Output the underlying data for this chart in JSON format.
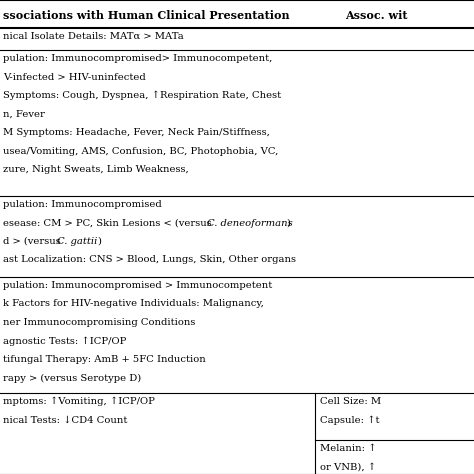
{
  "background_color": "#ffffff",
  "text_color": "#000000",
  "font_size": 7.2,
  "header_font_size": 8.0,
  "title_left": "ssociations with Human Clinical Presentation",
  "title_right": "Assoc. wit",
  "row1_text": "nical Isolate Details: MATα > MATa",
  "row2_lines": [
    "pulation: Immunocompromised> Immunocompetent,",
    "V-infected > HIV-uninfected",
    "Symptoms: Cough, Dyspnea, ↑Respiration Rate, Chest",
    "n, Fever",
    "M Symptoms: Headache, Fever, Neck Pain/Stiffness,",
    "usea/Vomiting, AMS, Confusion, BC, Photophobia, VC,",
    "zure, Night Sweats, Limb Weakness,"
  ],
  "row3_lines": [
    "pulation: Immunocompromised",
    "esease: CM > PC, Skin Lesions < (versus ",
    "C. deneoformans",
    ")",
    "d > (versus ",
    "C. gattii",
    ")",
    "ast Localization: CNS > Blood, Lungs, Skin, Other organs"
  ],
  "row4_lines": [
    "pulation: Immunocompromised > Immunocompetent",
    "k Factors for HIV-negative Individuals: Malignancy,",
    "ner Immunocompromising Conditions",
    "agnostic Tests: ↑ICP/OP",
    "tifungal Therapy: AmB + 5FC Induction",
    "rapy > (versus Serotype D)"
  ],
  "row5_left_lines": [
    "mptoms: ↑Vomiting, ↑ICP/OP",
    "nical Tests: ↓CD4 Count"
  ],
  "row5_right_lines": [
    "Cell Size: M",
    "Capsule: ↑t"
  ],
  "row6_right_lines": [
    "Melanin: ↑",
    "or VNB), ↑"
  ]
}
